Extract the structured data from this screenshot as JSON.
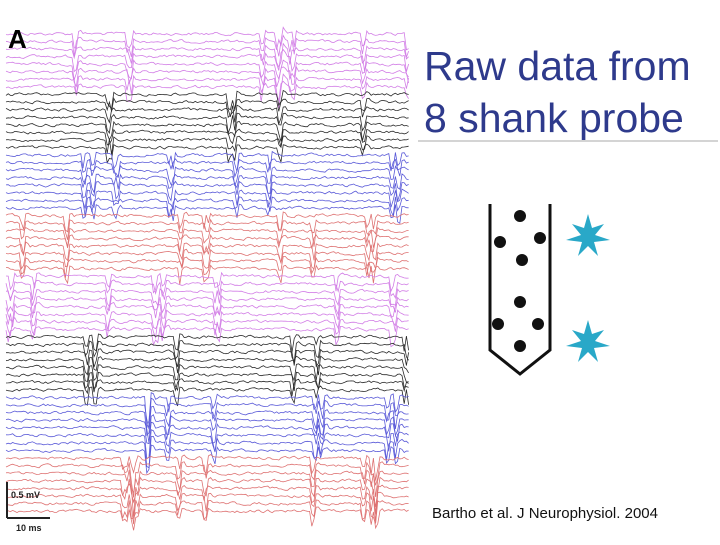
{
  "panel_label": "A",
  "title": {
    "line1": "Raw data from",
    "line2": "8 shank probe"
  },
  "citation": "Bartho et al. J Neurophysiol. 2004",
  "scale_bar": {
    "voltage": "0.5 mV",
    "time": "10 ms"
  },
  "shank_groups": [
    {
      "color": "#d27ee6"
    },
    {
      "color": "#2b2b2b"
    },
    {
      "color": "#5a5ad8"
    },
    {
      "color": "#de7272"
    },
    {
      "color": "#d27ee6"
    },
    {
      "color": "#2b2b2b"
    },
    {
      "color": "#5a5ad8"
    },
    {
      "color": "#de7272"
    }
  ],
  "probe": {
    "outline_color": "#111111",
    "site_color": "#111111",
    "neuron_color": "#29a8c8",
    "neuron_icon": "neuron-icon"
  }
}
